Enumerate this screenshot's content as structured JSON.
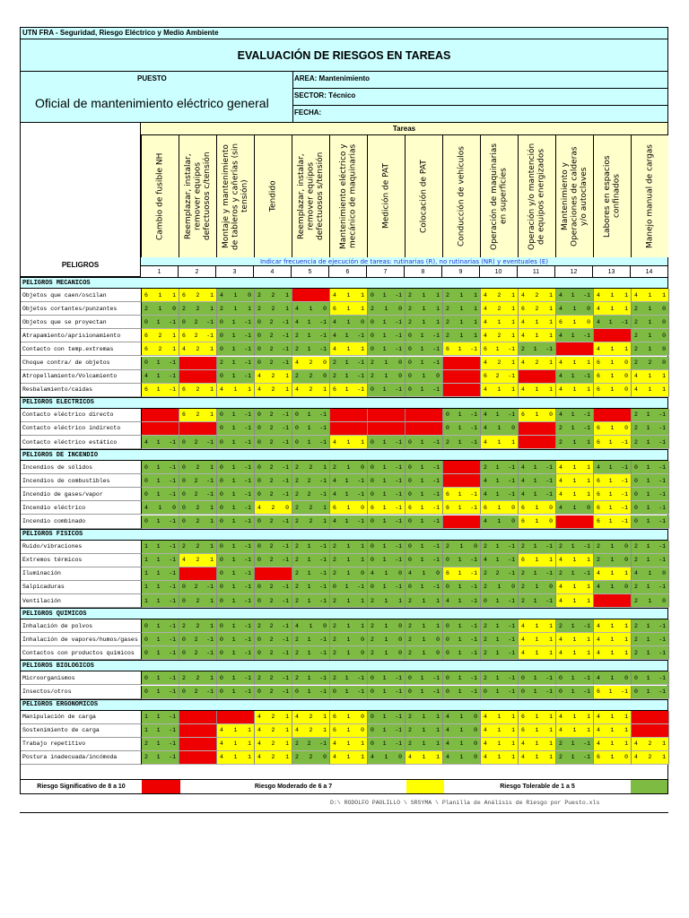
{
  "header": {
    "org": "UTN FRA - Seguridad, Riesgo Eléctrico y Medio Ambiente",
    "title": "EVALUACIÓN DE RIESGOS EN TAREAS",
    "puesto_label": "PUESTO",
    "puesto_value": "Oficial de mantenimiento eléctrico general",
    "area": "AREA:  Mantenimiento",
    "sector": "SECTOR: Técnico",
    "fecha": "FECHA:"
  },
  "tasks_title": "Tareas",
  "tasks": [
    "Cambio de fusible NH",
    "Reemplazar, instalar, remover equipos defectuosos c/tensión",
    "Montaje y mantenimiento de tableros y cañerías (sin tensión)",
    "Tendido",
    "Reemplazar, instalar, remover equipos defectuosos s/tensión",
    "Mantenimiento eléctrico y mecánico de maquinarias",
    "Medición de PAT",
    "Colocación de PAT",
    "Conducción de vehículos",
    "Operación de maquinarias en superficies",
    "Operación y/o mantención de equipos energizados",
    "Mantenimiento y Operaciones de calderas y/o autoclaves",
    "Labores en espacios confinados",
    "Manejo manual de cargas"
  ],
  "task_numbers": [
    "1",
    "2",
    "3",
    "4",
    "5",
    "6",
    "7",
    "8",
    "9",
    "10",
    "11",
    "12",
    "13",
    "14"
  ],
  "peligros_label": "PELIGROS",
  "frequency_note": "Indicar frecuencia de ejecución de tareas: rutinarias (R), no rutinarias (NR) y eventuales (E)",
  "categories": [
    {
      "name": "PELIGROS MECANICOS",
      "rows": [
        {
          "label": "Objetos que caen/oscilan",
          "cells": [
            "611",
            "621",
            "410",
            "221",
            "",
            "411",
            "01-1",
            "211",
            "211",
            "421",
            "421",
            "41-1",
            "411",
            "411"
          ]
        },
        {
          "label": "Objetos cortantes/punzantes",
          "cells": [
            "210",
            "221",
            "211",
            "221",
            "410",
            "611",
            "210",
            "211",
            "211",
            "421",
            "621",
            "410",
            "411",
            "210"
          ]
        },
        {
          "label": "Objetos que se proyectan",
          "cells": [
            "01-1",
            "02-1",
            "01-1",
            "02-1",
            "41-1",
            "410",
            "01-1",
            "211",
            "211",
            "411",
            "411",
            "610",
            "41-1",
            "210"
          ]
        },
        {
          "label": "Atrapamiento/aprisionamiento",
          "cells": [
            "621",
            "62-1",
            "01-1",
            "02-1",
            "21-1",
            "41-1",
            "01-1",
            "01-1",
            "211",
            "421",
            "411",
            "41-1",
            "",
            "210"
          ]
        },
        {
          "label": "Contacto con temp.extremas",
          "cells": [
            "621",
            "421",
            "01-1",
            "02-1",
            "21-1",
            "411",
            "01-1",
            "01-1",
            "61-1",
            "61-1",
            "21-1",
            "",
            "411",
            "210"
          ]
        },
        {
          "label": "Choque contra/ de objetos",
          "cells": [
            "01-1",
            "",
            "21-1",
            "02-1",
            "420",
            "21-1",
            "210",
            "01-1",
            "",
            "421",
            "421",
            "411",
            "610",
            "220"
          ]
        },
        {
          "label": "Atropellamiento/Volcamiento",
          "cells": [
            "41-1",
            "",
            "01-1",
            "421",
            "220",
            "21-1",
            "210",
            "010",
            "",
            "62-1",
            "",
            "41-1",
            "610",
            "411"
          ]
        },
        {
          "label": "Resbalamiento/caidas",
          "cells": [
            "61-1",
            "621",
            "411",
            "421",
            "421",
            "61-1",
            "01-1",
            "01-1",
            "",
            "411",
            "411",
            "411",
            "610",
            "411"
          ]
        }
      ]
    },
    {
      "name": "PELIGROS ELECTRICOS",
      "rows": [
        {
          "label": "Contacto eléctrico directo",
          "cells": [
            "",
            "621",
            "01-1",
            "02-1",
            "01-1",
            "",
            "",
            "",
            "01-1",
            "41-1",
            "610",
            "41-1",
            "",
            "21-1"
          ]
        },
        {
          "label": "Contacto eléctrico indirecto",
          "cells": [
            "",
            "",
            "01-1",
            "02-1",
            "01-1",
            "",
            "",
            "",
            "01-1",
            "410",
            "",
            "21-1",
            "610",
            "21-1"
          ]
        },
        {
          "label": "Contacto eléctrico estático",
          "cells": [
            "41-1",
            "02-1",
            "01-1",
            "02-1",
            "01-1",
            "411",
            "01-1",
            "01-1",
            "21-1",
            "411",
            "",
            "211",
            "61-1",
            "21-1"
          ]
        }
      ]
    },
    {
      "name": "PELIGROS DE INCENDIO",
      "rows": [
        {
          "label": "Incendios de sólidos",
          "cells": [
            "01-1",
            "021",
            "01-1",
            "02-1",
            "221",
            "210",
            "01-1",
            "01-1",
            "",
            "21-1",
            "41-1",
            "411",
            "41-1",
            "01-1"
          ]
        },
        {
          "label": "Incendios de combustibles",
          "cells": [
            "01-1",
            "02-1",
            "01-1",
            "02-1",
            "22-1",
            "41-1",
            "01-1",
            "01-1",
            "",
            "41-1",
            "41-1",
            "411",
            "61-1",
            "01-1"
          ]
        },
        {
          "label": "Incendio de gases/vapor",
          "cells": [
            "01-1",
            "02-1",
            "01-1",
            "02-1",
            "22-1",
            "41-1",
            "01-1",
            "01-1",
            "61-1",
            "41-1",
            "41-1",
            "411",
            "61-1",
            "01-1"
          ]
        },
        {
          "label": "Incendio eléctrico",
          "cells": [
            "410",
            "021",
            "01-1",
            "420",
            "221",
            "610",
            "61-1",
            "61-1",
            "61-1",
            "610",
            "610",
            "410",
            "61-1",
            "01-1"
          ]
        },
        {
          "label": "Incendio combinado",
          "cells": [
            "01-1",
            "021",
            "01-1",
            "02-1",
            "221",
            "41-1",
            "01-1",
            "01-1",
            "",
            "410",
            "610",
            "",
            "61-1",
            "01-1"
          ]
        }
      ]
    },
    {
      "name": "PELIGROS FISICOS",
      "rows": [
        {
          "label": "Ruido/vibraciones",
          "cells": [
            "11-1",
            "221",
            "01-1",
            "02-1",
            "21-1",
            "211",
            "01-1",
            "01-1",
            "210",
            "21-1",
            "21-1",
            "21-1",
            "210",
            "21-1"
          ]
        },
        {
          "label": "Extremos térmicos",
          "cells": [
            "11-1",
            "421",
            "01-1",
            "02-1",
            "21-1",
            "211",
            "01-1",
            "01-1",
            "01-1",
            "41-1",
            "611",
            "411",
            "210",
            "21-1"
          ]
        },
        {
          "label": "Iluminación",
          "cells": [
            "11-1",
            "",
            "01-1",
            "",
            "21-1",
            "210",
            "410",
            "410",
            "61-1",
            "22-1",
            "21-1",
            "21-1",
            "411",
            "410"
          ]
        },
        {
          "label": "Salpicaduras",
          "cells": [
            "11-1",
            "02-1",
            "01-1",
            "02-1",
            "21-1",
            "01-1",
            "01-1",
            "01-1",
            "01-1",
            "210",
            "210",
            "411",
            "410",
            "21-1"
          ]
        },
        {
          "label": "Ventilación",
          "cells": [
            "11-1",
            "021",
            "01-1",
            "02-1",
            "21-1",
            "211",
            "211",
            "211",
            "41-1",
            "01-1",
            "21-1",
            "411",
            "",
            "210"
          ]
        }
      ]
    },
    {
      "name": "PELIGROS QUIMICOS",
      "rows": [
        {
          "label": "Inhalación de polvos",
          "cells": [
            "01-1",
            "221",
            "01-1",
            "22-1",
            "410",
            "211",
            "210",
            "211",
            "01-1",
            "21-1",
            "411",
            "21-1",
            "411",
            "21-1"
          ]
        },
        {
          "label": "Inhalación de vapores/humos/gases",
          "cells": [
            "01-1",
            "02-1",
            "01-1",
            "02-1",
            "21-1",
            "210",
            "210",
            "210",
            "01-1",
            "21-1",
            "411",
            "411",
            "411",
            "21-1"
          ]
        },
        {
          "label": "Contactos con productos químicos",
          "cells": [
            "01-1",
            "02-1",
            "01-1",
            "02-1",
            "21-1",
            "210",
            "210",
            "210",
            "01-1",
            "21-1",
            "411",
            "411",
            "411",
            "21-1"
          ]
        }
      ]
    },
    {
      "name": "PELIGROS BIOLOGICOS",
      "rows": [
        {
          "label": "Microorganismos",
          "cells": [
            "01-1",
            "221",
            "01-1",
            "22-1",
            "21-1",
            "21-1",
            "01-1",
            "01-1",
            "01-1",
            "21-1",
            "01-1",
            "01-1",
            "410",
            "01-1"
          ]
        },
        {
          "label": "Insectos/otros",
          "cells": [
            "01-1",
            "02-1",
            "01-1",
            "02-1",
            "01-1",
            "01-1",
            "01-1",
            "01-1",
            "01-1",
            "01-1",
            "01-1",
            "01-1",
            "61-1",
            "01-1"
          ]
        }
      ]
    },
    {
      "name": "PELIGROS ERGONOMICOS",
      "rows": [
        {
          "label": "Manipulación de carga",
          "cells": [
            "11-1",
            "",
            "",
            "421",
            "421",
            "610",
            "01-1",
            "211",
            "410",
            "411",
            "611",
            "411",
            "411",
            ""
          ]
        },
        {
          "label": "Sostenimiento de carga",
          "cells": [
            "11-1",
            "",
            "411",
            "421",
            "421",
            "610",
            "01-1",
            "211",
            "410",
            "411",
            "611",
            "411",
            "411",
            ""
          ]
        },
        {
          "label": "Trabajo repetitivo",
          "cells": [
            "21-1",
            "",
            "411",
            "421",
            "22-1",
            "411",
            "01-1",
            "211",
            "410",
            "411",
            "411",
            "21-1",
            "411",
            "421"
          ]
        },
        {
          "label": "Postura inadecuada/incómoda",
          "cells": [
            "21-1",
            "",
            "411",
            "421",
            "220",
            "411",
            "410",
            "411",
            "410",
            "411",
            "411",
            "21-1",
            "610",
            "421"
          ]
        }
      ]
    }
  ],
  "legend": {
    "significativo": "Riesgo Significativo de 8 a 10",
    "moderado": "Riesgo  Moderado de 6 a 7",
    "tolerable": "Riesgo Tolerable de 1 a 5"
  },
  "footer_path": "D:\\ RODOLFO PAOLILLO \\ SRSYMA \\ Planilla de Análisis de Riesgo por Puesto.xls",
  "colors": {
    "red": "#ee0000",
    "yellow": "#ffff00",
    "green": "#7dbb42",
    "cyan": "#ccffff"
  }
}
